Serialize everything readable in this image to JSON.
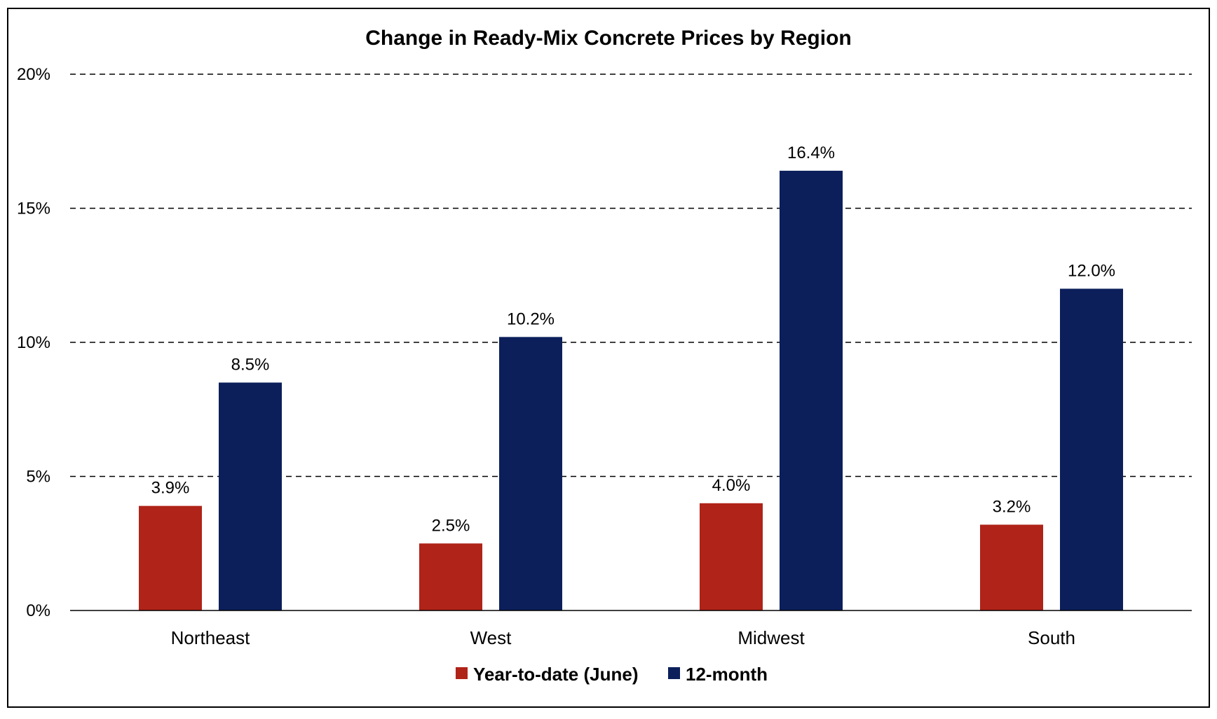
{
  "chart_data": {
    "type": "bar",
    "title": "Change in Ready-Mix Concrete Prices by Region",
    "categories": [
      "Northeast",
      "West",
      "Midwest",
      "South"
    ],
    "series": [
      {
        "name": "Year-to-date (June)",
        "color": "#b02318",
        "values": [
          3.9,
          2.5,
          4.0,
          3.2
        ],
        "labels": [
          "3.9%",
          "2.5%",
          "4.0%",
          "3.2%"
        ]
      },
      {
        "name": "12-month",
        "color": "#0c1f5b",
        "values": [
          8.5,
          10.2,
          16.4,
          12.0
        ],
        "labels": [
          "8.5%",
          "10.2%",
          "16.4%",
          "12.0%"
        ]
      }
    ],
    "ylim": [
      0,
      20
    ],
    "yticks": [
      0,
      5,
      10,
      15,
      20
    ],
    "ytick_labels": [
      "0%",
      "5%",
      "10%",
      "15%",
      "20%"
    ],
    "grid": "dashed horizontal",
    "legend_position": "bottom",
    "xlabel": "",
    "ylabel": ""
  }
}
